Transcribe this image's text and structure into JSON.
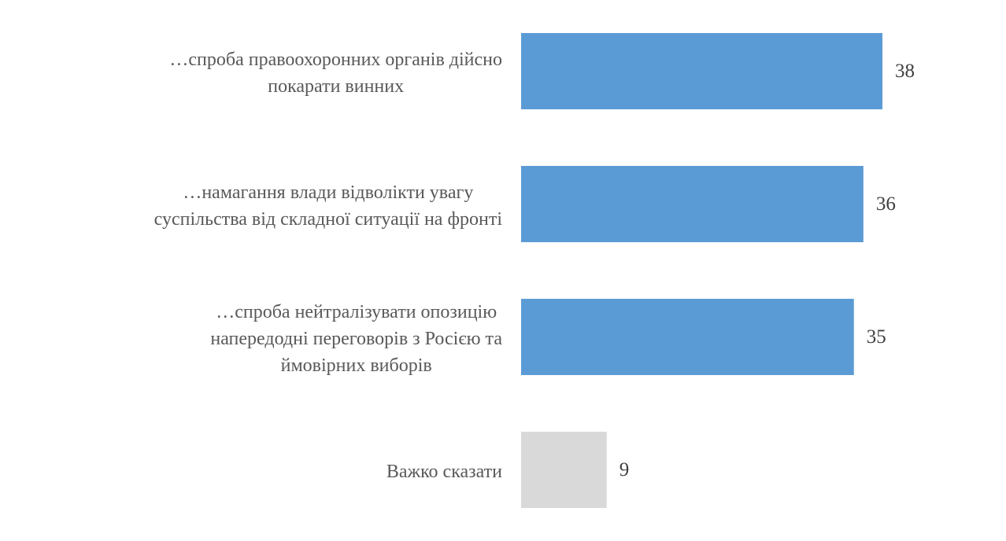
{
  "chart_data": {
    "type": "bar",
    "orientation": "horizontal",
    "categories": [
      "…спроба правоохоронних органів дійсно\nпокарати винних",
      "…намагання влади відволікти увагу\nсуспільства від складної ситуації на фронті",
      "…спроба нейтралізувати опозицію\nнапередодні переговорів з Росією та\nймовірних виборів",
      "Важко сказати"
    ],
    "values": [
      38,
      36,
      35,
      9
    ],
    "colors": [
      "#5b9bd5",
      "#5b9bd5",
      "#5b9bd5",
      "#d9d9d9"
    ]
  }
}
